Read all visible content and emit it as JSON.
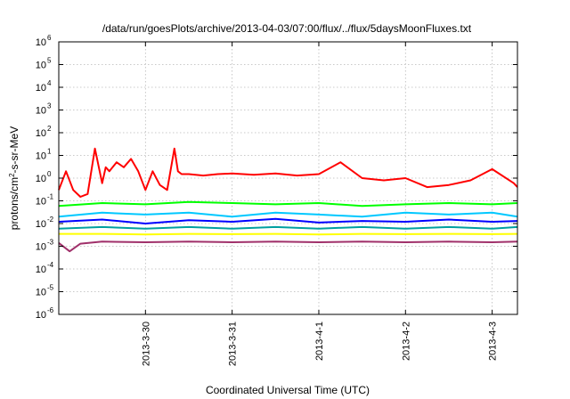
{
  "chart_data": {
    "type": "line",
    "title": "/data/run/goesPlots/archive/2013-04-03/07:00/flux/../flux/5daysMoonFluxes.txt",
    "xlabel": "Coordinated Universal Time (UTC)",
    "ylabel": {
      "base": "protons/cm",
      "sup": "2",
      "rest": "-s-sr-MeV"
    },
    "yscale": "log",
    "ylim": [
      "1e-6",
      "1e6"
    ],
    "yticks": [
      {
        "value": "1e-6",
        "base": "10",
        "exp": "-6"
      },
      {
        "value": "1e-5",
        "base": "10",
        "exp": "-5"
      },
      {
        "value": "1e-4",
        "base": "10",
        "exp": "-4"
      },
      {
        "value": "1e-3",
        "base": "10",
        "exp": "-3"
      },
      {
        "value": "1e-2",
        "base": "10",
        "exp": "-2"
      },
      {
        "value": "1e-1",
        "base": "10",
        "exp": "-1"
      },
      {
        "value": "1e0",
        "base": "10",
        "exp": "0"
      },
      {
        "value": "1e1",
        "base": "10",
        "exp": "1"
      },
      {
        "value": "1e2",
        "base": "10",
        "exp": "2"
      },
      {
        "value": "1e3",
        "base": "10",
        "exp": "3"
      },
      {
        "value": "1e4",
        "base": "10",
        "exp": "4"
      },
      {
        "value": "1e5",
        "base": "10",
        "exp": "5"
      },
      {
        "value": "1e6",
        "base": "10",
        "exp": "6"
      }
    ],
    "xlim": [
      "2013-03-29T00:00",
      "2013-04-03T07:00"
    ],
    "xticks": [
      {
        "value": "2013-03-30T00:00",
        "label": "2013-3-30"
      },
      {
        "value": "2013-03-31T00:00",
        "label": "2013-3-31"
      },
      {
        "value": "2013-04-01T00:00",
        "label": "2013-4-1"
      },
      {
        "value": "2013-04-02T00:00",
        "label": "2013-4-2"
      },
      {
        "value": "2013-04-03T00:00",
        "label": "2013-4-3"
      }
    ],
    "grid": true,
    "series": [
      {
        "color": "#ff0000",
        "x": [
          "2013-03-29T00:00",
          "2013-03-29T02:00",
          "2013-03-29T04:00",
          "2013-03-29T06:00",
          "2013-03-29T08:00",
          "2013-03-29T10:00",
          "2013-03-29T12:00",
          "2013-03-29T13:00",
          "2013-03-29T14:00",
          "2013-03-29T16:00",
          "2013-03-29T18:00",
          "2013-03-29T20:00",
          "2013-03-29T22:00",
          "2013-03-30T00:00",
          "2013-03-30T02:00",
          "2013-03-30T04:00",
          "2013-03-30T06:00",
          "2013-03-30T08:00",
          "2013-03-30T09:00",
          "2013-03-30T10:00",
          "2013-03-30T12:00",
          "2013-03-30T16:00",
          "2013-03-30T20:00",
          "2013-03-31T00:00",
          "2013-03-31T06:00",
          "2013-03-31T12:00",
          "2013-03-31T18:00",
          "2013-04-01T00:00",
          "2013-04-01T06:00",
          "2013-04-01T12:00",
          "2013-04-01T18:00",
          "2013-04-02T00:00",
          "2013-04-02T06:00",
          "2013-04-02T12:00",
          "2013-04-02T18:00",
          "2013-04-03T00:00",
          "2013-04-03T06:00",
          "2013-04-03T07:00"
        ],
        "y": [
          "0.3",
          "2",
          "0.3",
          "0.15",
          "0.2",
          "20",
          "0.6",
          "3",
          "2",
          "5",
          "3",
          "7",
          "2",
          "0.3",
          "2",
          "0.5",
          "0.3",
          "20",
          "2",
          "1.5",
          "1.5",
          "1.3",
          "1.5",
          "1.6",
          "1.4",
          "1.6",
          "1.3",
          "1.5",
          "5",
          "1.0",
          "0.8",
          "1.0",
          "0.4",
          "0.5",
          "0.8",
          "2.5",
          "0.6",
          "0.4"
        ]
      },
      {
        "color": "#00ff00",
        "x": [
          "2013-03-29T00:00",
          "2013-03-29T12:00",
          "2013-03-30T00:00",
          "2013-03-30T12:00",
          "2013-03-31T00:00",
          "2013-03-31T12:00",
          "2013-04-01T00:00",
          "2013-04-01T12:00",
          "2013-04-02T00:00",
          "2013-04-02T12:00",
          "2013-04-03T00:00",
          "2013-04-03T07:00"
        ],
        "y": [
          "0.06",
          "0.08",
          "0.07",
          "0.09",
          "0.08",
          "0.07",
          "0.08",
          "0.06",
          "0.07",
          "0.08",
          "0.07",
          "0.08"
        ]
      },
      {
        "color": "#00c8ff",
        "x": [
          "2013-03-29T00:00",
          "2013-03-29T12:00",
          "2013-03-30T00:00",
          "2013-03-30T12:00",
          "2013-03-31T00:00",
          "2013-03-31T12:00",
          "2013-04-01T00:00",
          "2013-04-01T12:00",
          "2013-04-02T00:00",
          "2013-04-02T12:00",
          "2013-04-03T00:00",
          "2013-04-03T07:00"
        ],
        "y": [
          "0.02",
          "0.03",
          "0.025",
          "0.03",
          "0.02",
          "0.03",
          "0.025",
          "0.02",
          "0.03",
          "0.025",
          "0.03",
          "0.02"
        ]
      },
      {
        "color": "#0000ff",
        "x": [
          "2013-03-29T00:00",
          "2013-03-29T12:00",
          "2013-03-30T00:00",
          "2013-03-30T12:00",
          "2013-03-31T00:00",
          "2013-03-31T12:00",
          "2013-04-01T00:00",
          "2013-04-01T12:00",
          "2013-04-02T00:00",
          "2013-04-02T12:00",
          "2013-04-03T00:00",
          "2013-04-03T07:00"
        ],
        "y": [
          "0.012",
          "0.015",
          "0.01",
          "0.014",
          "0.012",
          "0.016",
          "0.011",
          "0.013",
          "0.012",
          "0.015",
          "0.012",
          "0.013"
        ]
      },
      {
        "color": "#00a0a0",
        "x": [
          "2013-03-29T00:00",
          "2013-03-29T12:00",
          "2013-03-30T00:00",
          "2013-03-30T12:00",
          "2013-03-31T00:00",
          "2013-03-31T12:00",
          "2013-04-01T00:00",
          "2013-04-01T12:00",
          "2013-04-02T00:00",
          "2013-04-02T12:00",
          "2013-04-03T00:00",
          "2013-04-03T07:00"
        ],
        "y": [
          "0.006",
          "0.007",
          "0.006",
          "0.007",
          "0.006",
          "0.007",
          "0.006",
          "0.007",
          "0.006",
          "0.007",
          "0.006",
          "0.007"
        ]
      },
      {
        "color": "#ffff00",
        "x": [
          "2013-03-29T00:00",
          "2013-03-29T12:00",
          "2013-03-30T00:00",
          "2013-03-30T12:00",
          "2013-03-31T00:00",
          "2013-03-31T12:00",
          "2013-04-01T00:00",
          "2013-04-01T12:00",
          "2013-04-02T00:00",
          "2013-04-02T12:00",
          "2013-04-03T00:00",
          "2013-04-03T07:00"
        ],
        "y": [
          "0.0035",
          "0.0035",
          "0.0033",
          "0.0035",
          "0.0034",
          "0.0035",
          "0.0033",
          "0.0035",
          "0.0034",
          "0.0035",
          "0.0034",
          "0.0035"
        ]
      },
      {
        "color": "#a0306a",
        "x": [
          "2013-03-29T00:00",
          "2013-03-29T03:00",
          "2013-03-29T06:00",
          "2013-03-29T12:00",
          "2013-03-30T00:00",
          "2013-03-30T12:00",
          "2013-03-31T00:00",
          "2013-03-31T12:00",
          "2013-04-01T00:00",
          "2013-04-01T12:00",
          "2013-04-02T00:00",
          "2013-04-02T12:00",
          "2013-04-03T00:00",
          "2013-04-03T07:00"
        ],
        "y": [
          "0.0014",
          "0.0006",
          "0.0013",
          "0.0016",
          "0.0015",
          "0.0016",
          "0.0015",
          "0.0016",
          "0.0015",
          "0.0016",
          "0.0015",
          "0.0016",
          "0.0015",
          "0.0016"
        ]
      }
    ]
  }
}
